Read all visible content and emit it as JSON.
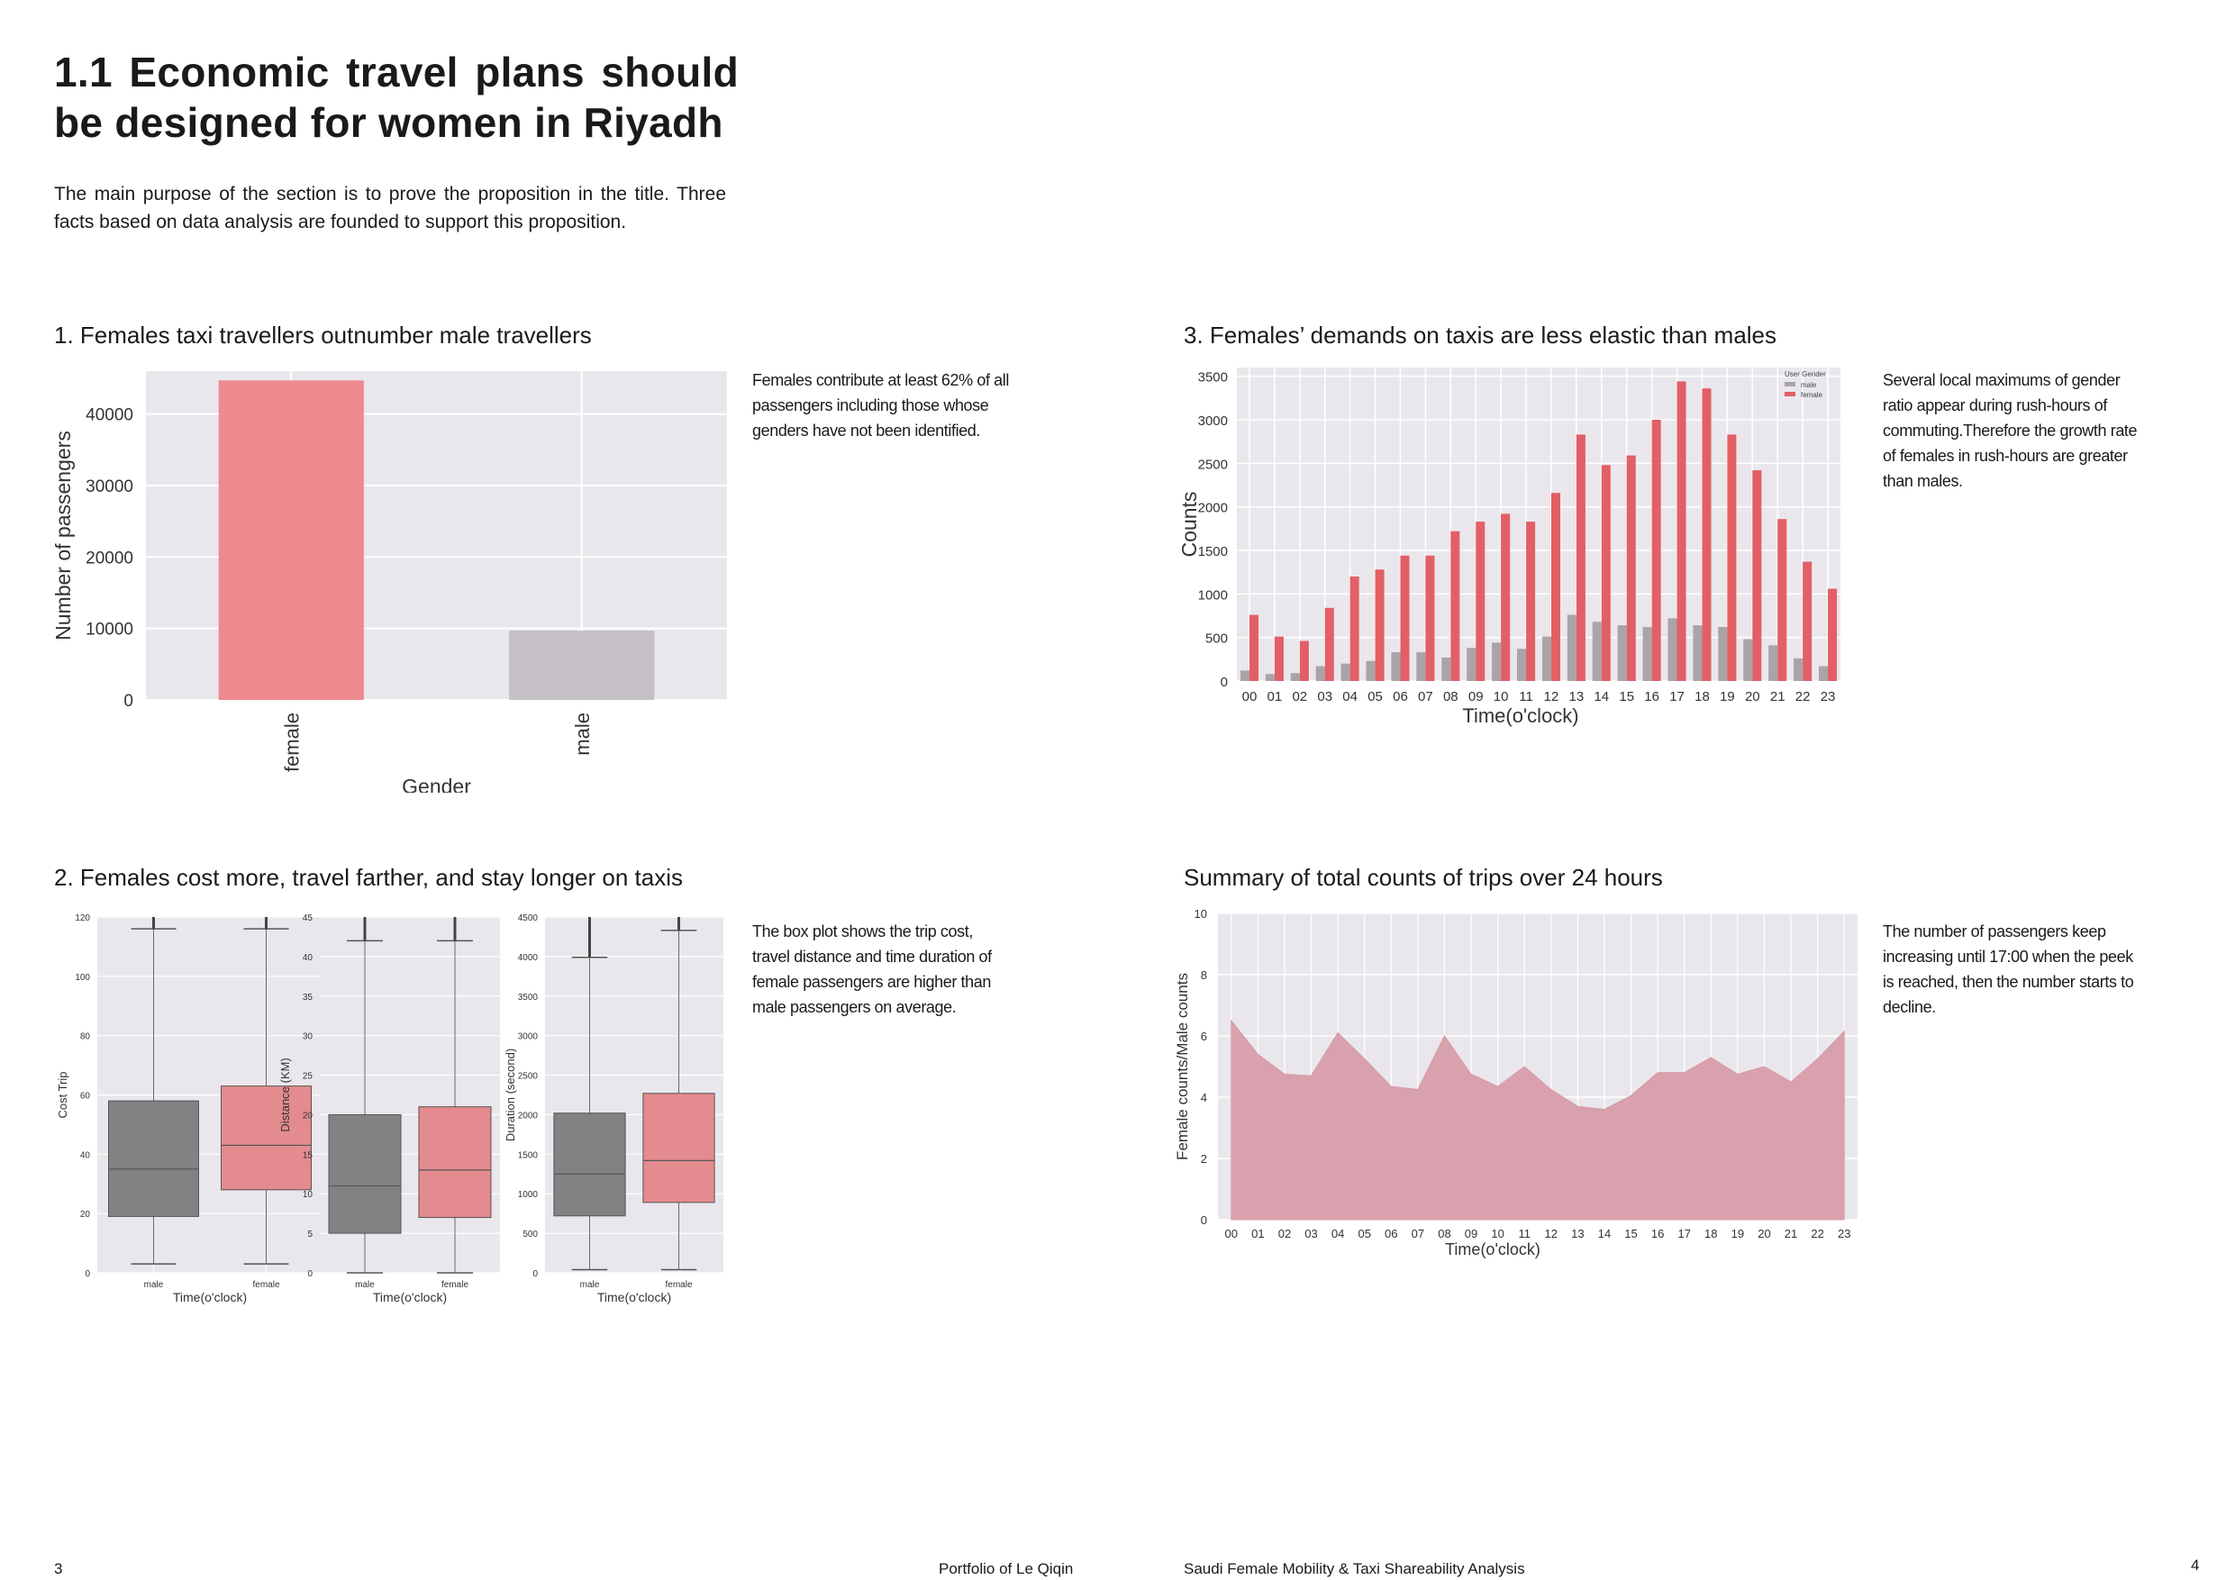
{
  "heading": "1.1 Economic travel plans should be designed for women in Riyadh",
  "intro": "The main purpose of the section is to prove the proposition in the title. Three facts based on data analysis are founded to support this proposition.",
  "sections": {
    "s1": {
      "title": "1. Females taxi travellers outnumber male travellers",
      "note": "Females contribute at least 62% of all passengers including those whose genders have not been identified."
    },
    "s2": {
      "title": "2. Females cost more, travel farther, and stay longer on taxis",
      "note": "The box plot shows the trip cost, travel distance and time duration of female passengers are higher than male passengers on average."
    },
    "s3": {
      "title": "3. Females’ demands on taxis are less elastic than males",
      "note": "Several local maximums of gender ratio appear during rush-hours of commuting.Therefore the growth rate of females in rush-hours are greater than males."
    },
    "s4": {
      "title": "Summary of total counts of trips over 24 hours",
      "note": "The number of passengers keep increasing until 17:00 when the peek is reached, then the number starts to decline."
    }
  },
  "footer": {
    "page_left": "3",
    "portfolio": "Portfolio of Le Qiqin",
    "project": "Saudi Female Mobility & Taxi Shareability Analysis",
    "page_right": "4"
  },
  "colors": {
    "female": "#ee8a90",
    "male": "#c4c0c6",
    "female_bar": "#e35f66",
    "male_bar": "#a8a4a8",
    "panel_bg": "#eae7ec",
    "area": "#d9a1ad",
    "box_male": "#838184",
    "box_female": "#e38b8e"
  },
  "chart_data": [
    {
      "id": "gender-bar",
      "type": "bar",
      "categories": [
        "female",
        "male"
      ],
      "values": [
        44700,
        9700
      ],
      "xlabel": "Gender",
      "ylabel": "Number of passengers",
      "ylim": [
        0,
        46000
      ],
      "yticks": [
        "0",
        "10000",
        "20000",
        "30000",
        "40000"
      ],
      "grid": true
    },
    {
      "id": "hourly-bar",
      "type": "bar",
      "categories": [
        "00",
        "01",
        "02",
        "03",
        "04",
        "05",
        "06",
        "07",
        "08",
        "09",
        "10",
        "11",
        "12",
        "13",
        "14",
        "15",
        "16",
        "17",
        "18",
        "19",
        "20",
        "21",
        "22",
        "23"
      ],
      "series": [
        {
          "name": "male",
          "values": [
            120,
            80,
            90,
            170,
            200,
            230,
            330,
            330,
            270,
            380,
            440,
            370,
            510,
            760,
            680,
            640,
            620,
            720,
            640,
            620,
            480,
            410,
            260,
            170
          ]
        },
        {
          "name": "female",
          "values": [
            760,
            510,
            460,
            840,
            1200,
            1280,
            1440,
            1440,
            1720,
            1830,
            1920,
            1830,
            2160,
            2830,
            2480,
            2590,
            3000,
            3440,
            3360,
            2830,
            2420,
            1860,
            1370,
            1060
          ]
        }
      ],
      "legend_title": "User Gender",
      "legend_position": "top-right",
      "xlabel": "Time(o'clock)",
      "ylabel": "Counts",
      "ylim": [
        0,
        3600
      ],
      "yticks": [
        "0",
        "500",
        "1000",
        "1500",
        "2000",
        "2500",
        "3000",
        "3500"
      ],
      "grid": true
    },
    {
      "id": "boxplots",
      "type": "box",
      "panels": [
        {
          "ylabel": "Cost Trip",
          "xlabel": "Time(o'clock)",
          "categories": [
            "male",
            "female"
          ],
          "ylim": [
            0,
            120
          ],
          "yticks": [
            "0",
            "20",
            "40",
            "60",
            "80",
            "100",
            "120"
          ],
          "boxes": [
            {
              "min": 3,
              "q1": 19,
              "median": 35,
              "q3": 58,
              "max": 116
            },
            {
              "min": 3,
              "q1": 28,
              "median": 43,
              "q3": 63,
              "max": 116
            }
          ]
        },
        {
          "ylabel": "Distance (KM)",
          "xlabel": "Time(o'clock)",
          "categories": [
            "male",
            "female"
          ],
          "ylim": [
            0,
            45
          ],
          "yticks": [
            "0",
            "5",
            "10",
            "15",
            "20",
            "25",
            "30",
            "35",
            "40",
            "45"
          ],
          "boxes": [
            {
              "min": 0,
              "q1": 5,
              "median": 11,
              "q3": 20,
              "max": 42
            },
            {
              "min": 0,
              "q1": 7,
              "median": 13,
              "q3": 21,
              "max": 42
            }
          ]
        },
        {
          "ylabel": "Duration (second)",
          "xlabel": "Time(o'clock)",
          "categories": [
            "male",
            "female"
          ],
          "ylim": [
            0,
            4500
          ],
          "yticks": [
            "0",
            "500",
            "1000",
            "1500",
            "2000",
            "2500",
            "3000",
            "3500",
            "4000",
            "4500"
          ],
          "boxes": [
            {
              "min": 40,
              "q1": 720,
              "median": 1250,
              "q3": 2020,
              "max": 3990
            },
            {
              "min": 40,
              "q1": 890,
              "median": 1420,
              "q3": 2270,
              "max": 4330
            }
          ]
        }
      ]
    },
    {
      "id": "ratio-area",
      "type": "area",
      "x": [
        "00",
        "01",
        "02",
        "03",
        "04",
        "05",
        "06",
        "07",
        "08",
        "09",
        "10",
        "11",
        "12",
        "13",
        "14",
        "15",
        "16",
        "17",
        "18",
        "19",
        "20",
        "21",
        "22",
        "23"
      ],
      "values": [
        6.5,
        5.4,
        4.75,
        4.7,
        6.1,
        5.25,
        4.35,
        4.25,
        6.0,
        4.75,
        4.35,
        5.0,
        4.25,
        3.7,
        3.6,
        4.05,
        4.8,
        4.8,
        5.3,
        4.75,
        5.0,
        4.5,
        5.25,
        6.15
      ],
      "xlabel": "Time(o'clock)",
      "ylabel": "Female counts/Male counts",
      "ylim": [
        0,
        10
      ],
      "yticks": [
        "0",
        "2",
        "4",
        "6",
        "8",
        "10"
      ],
      "grid": true
    }
  ]
}
